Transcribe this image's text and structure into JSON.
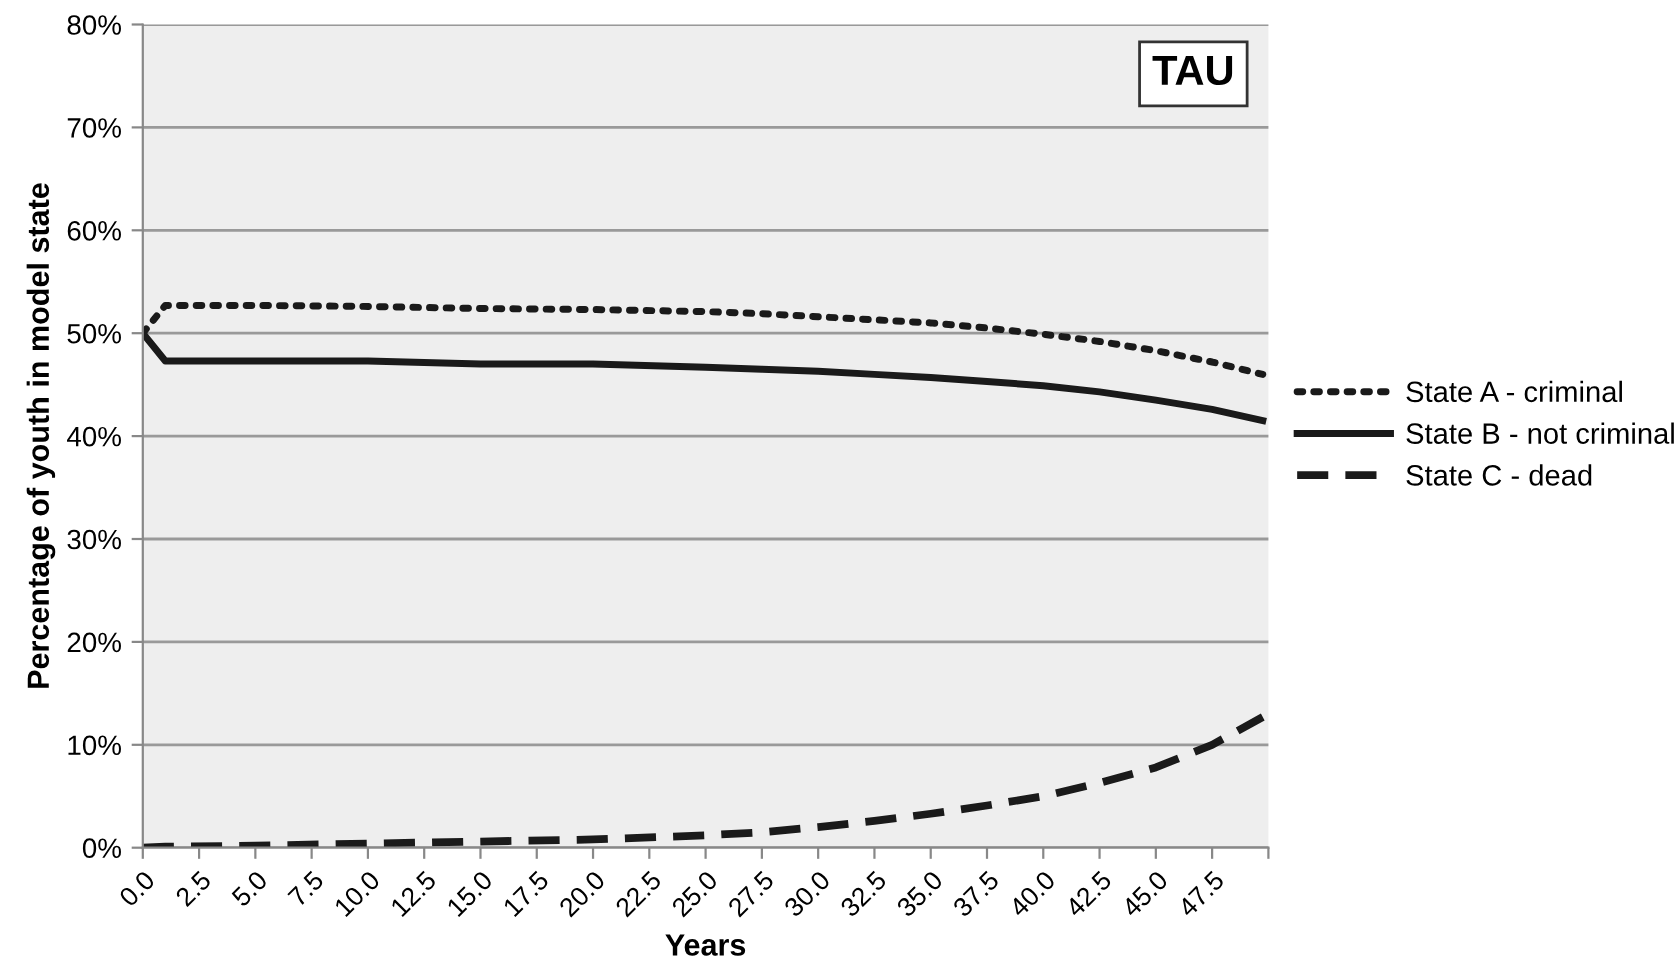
{
  "chart_data": {
    "type": "line",
    "xlabel": "Years",
    "ylabel": "Percentage of youth in model state",
    "x": [
      0,
      1,
      5,
      10,
      15,
      20,
      25,
      27.5,
      30,
      32.5,
      35,
      37.5,
      40,
      42.5,
      45,
      47.5,
      49.75
    ],
    "series": [
      {
        "name": "State A - criminal",
        "color": "#1a1a1a",
        "line_style": "dotted",
        "values": [
          50,
          52.7,
          52.7,
          52.6,
          52.4,
          52.3,
          52.1,
          51.9,
          51.6,
          51.3,
          51.0,
          50.5,
          49.9,
          49.2,
          48.3,
          47.2,
          46.0
        ]
      },
      {
        "name": "State B - not criminal",
        "color": "#1a1a1a",
        "line_style": "solid",
        "values": [
          50,
          47.3,
          47.3,
          47.3,
          47.0,
          47.0,
          46.7,
          46.5,
          46.3,
          46.0,
          45.7,
          45.3,
          44.9,
          44.3,
          43.5,
          42.6,
          41.5
        ]
      },
      {
        "name": "State C - dead",
        "color": "#1a1a1a",
        "line_style": "dashed",
        "values": [
          0,
          0.1,
          0.2,
          0.4,
          0.6,
          0.8,
          1.2,
          1.5,
          2.0,
          2.6,
          3.3,
          4.1,
          5.0,
          6.3,
          7.8,
          10.0,
          12.7
        ]
      }
    ],
    "xlim": [
      0,
      50
    ],
    "xticks": [
      {
        "value": 0,
        "label": "0.0"
      },
      {
        "value": 2.5,
        "label": "2.5"
      },
      {
        "value": 5,
        "label": "5.0"
      },
      {
        "value": 7.5,
        "label": "7.5"
      },
      {
        "value": 10,
        "label": "10.0"
      },
      {
        "value": 12.5,
        "label": "12.5"
      },
      {
        "value": 15,
        "label": "15.0"
      },
      {
        "value": 17.5,
        "label": "17.5"
      },
      {
        "value": 20,
        "label": "20.0"
      },
      {
        "value": 22.5,
        "label": "22.5"
      },
      {
        "value": 25,
        "label": "25.0"
      },
      {
        "value": 27.5,
        "label": "27.5"
      },
      {
        "value": 30,
        "label": "30.0"
      },
      {
        "value": 32.5,
        "label": "32.5"
      },
      {
        "value": 35,
        "label": "35.0"
      },
      {
        "value": 37.5,
        "label": "37.5"
      },
      {
        "value": 40,
        "label": "40.0"
      },
      {
        "value": 42.5,
        "label": "42.5"
      },
      {
        "value": 45,
        "label": "45.0"
      },
      {
        "value": 47.5,
        "label": "47.5"
      },
      {
        "value": 50,
        "label": null
      }
    ],
    "ylim": [
      0,
      80
    ],
    "yticks": [
      {
        "value": 0,
        "label": "0%"
      },
      {
        "value": 10,
        "label": "10%"
      },
      {
        "value": 20,
        "label": "20%"
      },
      {
        "value": 30,
        "label": "30%"
      },
      {
        "value": 40,
        "label": "40%"
      },
      {
        "value": 50,
        "label": "50%"
      },
      {
        "value": 60,
        "label": "60%"
      },
      {
        "value": 70,
        "label": "70%"
      },
      {
        "value": 80,
        "label": "80%"
      }
    ],
    "grid": "y",
    "legend": "right",
    "annotations": [
      "TAU"
    ]
  }
}
